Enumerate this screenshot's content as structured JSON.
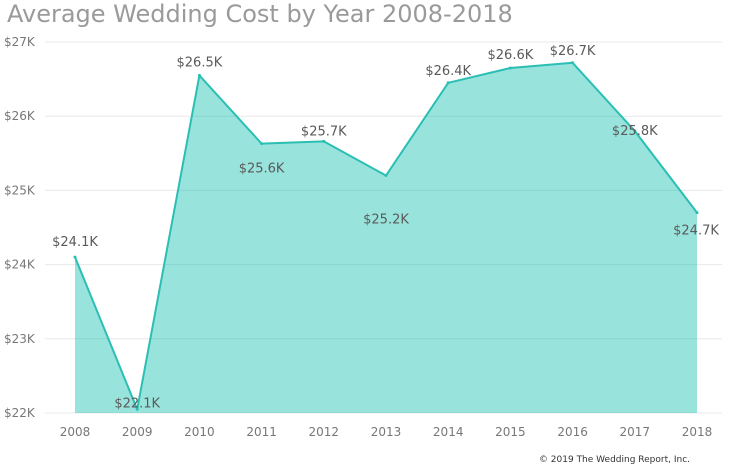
{
  "chart_data": {
    "type": "area",
    "title": "Average Wedding Cost by Year 2008-2018",
    "xlabel": "",
    "ylabel": "",
    "x": [
      "2008",
      "2009",
      "2010",
      "2011",
      "2012",
      "2013",
      "2014",
      "2015",
      "2016",
      "2017",
      "2018"
    ],
    "series": [
      {
        "values": [
          24100,
          22050,
          26550,
          25630,
          25660,
          25200,
          26450,
          26650,
          26720,
          25800,
          24700
        ],
        "color": "#01B8AA"
      }
    ],
    "data_labels": [
      "$24.1K",
      "$22.1K",
      "$26.5K",
      "$25.6K",
      "$25.7K",
      "$25.2K",
      "$26.4K",
      "$26.6K",
      "$26.7K",
      "$25.8K",
      "$24.7K"
    ],
    "ylim": [
      22000,
      27000
    ],
    "yticks": [
      22000,
      23000,
      24000,
      25000,
      26000,
      27000
    ],
    "ytick_labels": [
      "$22K",
      "$23K",
      "$24K",
      "$25K",
      "$26K",
      "$27K"
    ],
    "grid": true,
    "legend": "none",
    "colors": {
      "line": "#2bbfb4",
      "fill": "#01B8AA",
      "grid": "#e8e8e8"
    }
  },
  "footer": {
    "copyright": "© 2019 The Wedding Report, Inc."
  }
}
